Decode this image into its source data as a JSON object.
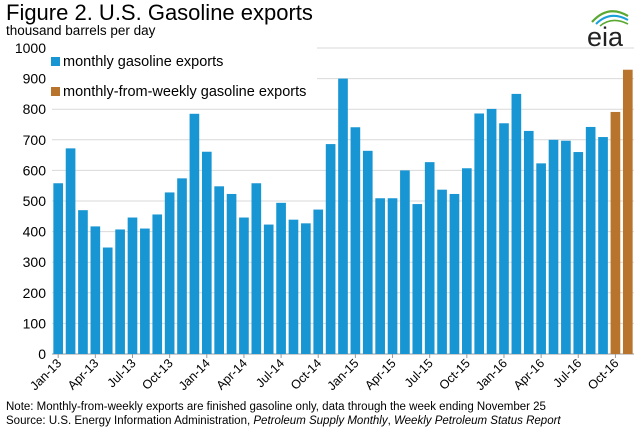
{
  "header": {
    "title": "Figure 2. U.S. Gasoline exports",
    "subtitle": "thousand barrels per day",
    "logo_text": "eia"
  },
  "notes": {
    "note": "Note: Monthly-from-weekly exports are finished gasoline only, data through the week ending November 25",
    "source_prefix": "Source: U.S. Energy Information Administration, ",
    "source_pub1": "Petroleum Supply Monthly",
    "source_sep": ", ",
    "source_pub2": "Weekly Petroleum Status Report"
  },
  "colors": {
    "monthly": "#1896d3",
    "weekly": "#b8742c",
    "grid": "#d9d9d9",
    "logo_green": "#5aa832",
    "logo_blue": "#1aa0d8"
  },
  "chart_data": {
    "type": "bar",
    "title": "Figure 2. U.S. Gasoline exports",
    "ylabel": "thousand barrels per day",
    "ylim": [
      0,
      1000
    ],
    "yticks": [
      0,
      100,
      200,
      300,
      400,
      500,
      600,
      700,
      800,
      900,
      1000
    ],
    "grid": true,
    "legend_position": "top-left",
    "tick_labels": [
      "Jan-13",
      "Apr-13",
      "Jul-13",
      "Oct-13",
      "Jan-14",
      "Apr-14",
      "Jul-14",
      "Oct-14",
      "Jan-15",
      "Apr-15",
      "Jul-15",
      "Oct-15",
      "Jan-16",
      "Apr-16",
      "Jul-16",
      "Oct-16"
    ],
    "categories": [
      "Jan-13",
      "Feb-13",
      "Mar-13",
      "Apr-13",
      "May-13",
      "Jun-13",
      "Jul-13",
      "Aug-13",
      "Sep-13",
      "Oct-13",
      "Nov-13",
      "Dec-13",
      "Jan-14",
      "Feb-14",
      "Mar-14",
      "Apr-14",
      "May-14",
      "Jun-14",
      "Jul-14",
      "Aug-14",
      "Sep-14",
      "Oct-14",
      "Nov-14",
      "Dec-14",
      "Jan-15",
      "Feb-15",
      "Mar-15",
      "Apr-15",
      "May-15",
      "Jun-15",
      "Jul-15",
      "Aug-15",
      "Sep-15",
      "Oct-15",
      "Nov-15",
      "Dec-15",
      "Jan-16",
      "Feb-16",
      "Mar-16",
      "Apr-16",
      "May-16",
      "Jun-16",
      "Jul-16",
      "Aug-16",
      "Sep-16",
      "Oct-16",
      "Nov-16"
    ],
    "series": [
      {
        "name": "monthly gasoline exports",
        "color": "#1896d3",
        "values": [
          558,
          672,
          470,
          417,
          348,
          407,
          446,
          410,
          456,
          528,
          574,
          785,
          661,
          548,
          523,
          446,
          558,
          423,
          494,
          439,
          427,
          472,
          686,
          900,
          741,
          664,
          509,
          509,
          600,
          490,
          627,
          537,
          523,
          607,
          786,
          801,
          754,
          850,
          729,
          623,
          700,
          697,
          660,
          742,
          709,
          null,
          null
        ]
      },
      {
        "name": "monthly-from-weekly gasoline exports",
        "color": "#b8742c",
        "values": [
          null,
          null,
          null,
          null,
          null,
          null,
          null,
          null,
          null,
          null,
          null,
          null,
          null,
          null,
          null,
          null,
          null,
          null,
          null,
          null,
          null,
          null,
          null,
          null,
          null,
          null,
          null,
          null,
          null,
          null,
          null,
          null,
          null,
          null,
          null,
          null,
          null,
          null,
          null,
          null,
          null,
          null,
          null,
          null,
          null,
          791,
          929
        ]
      }
    ]
  }
}
